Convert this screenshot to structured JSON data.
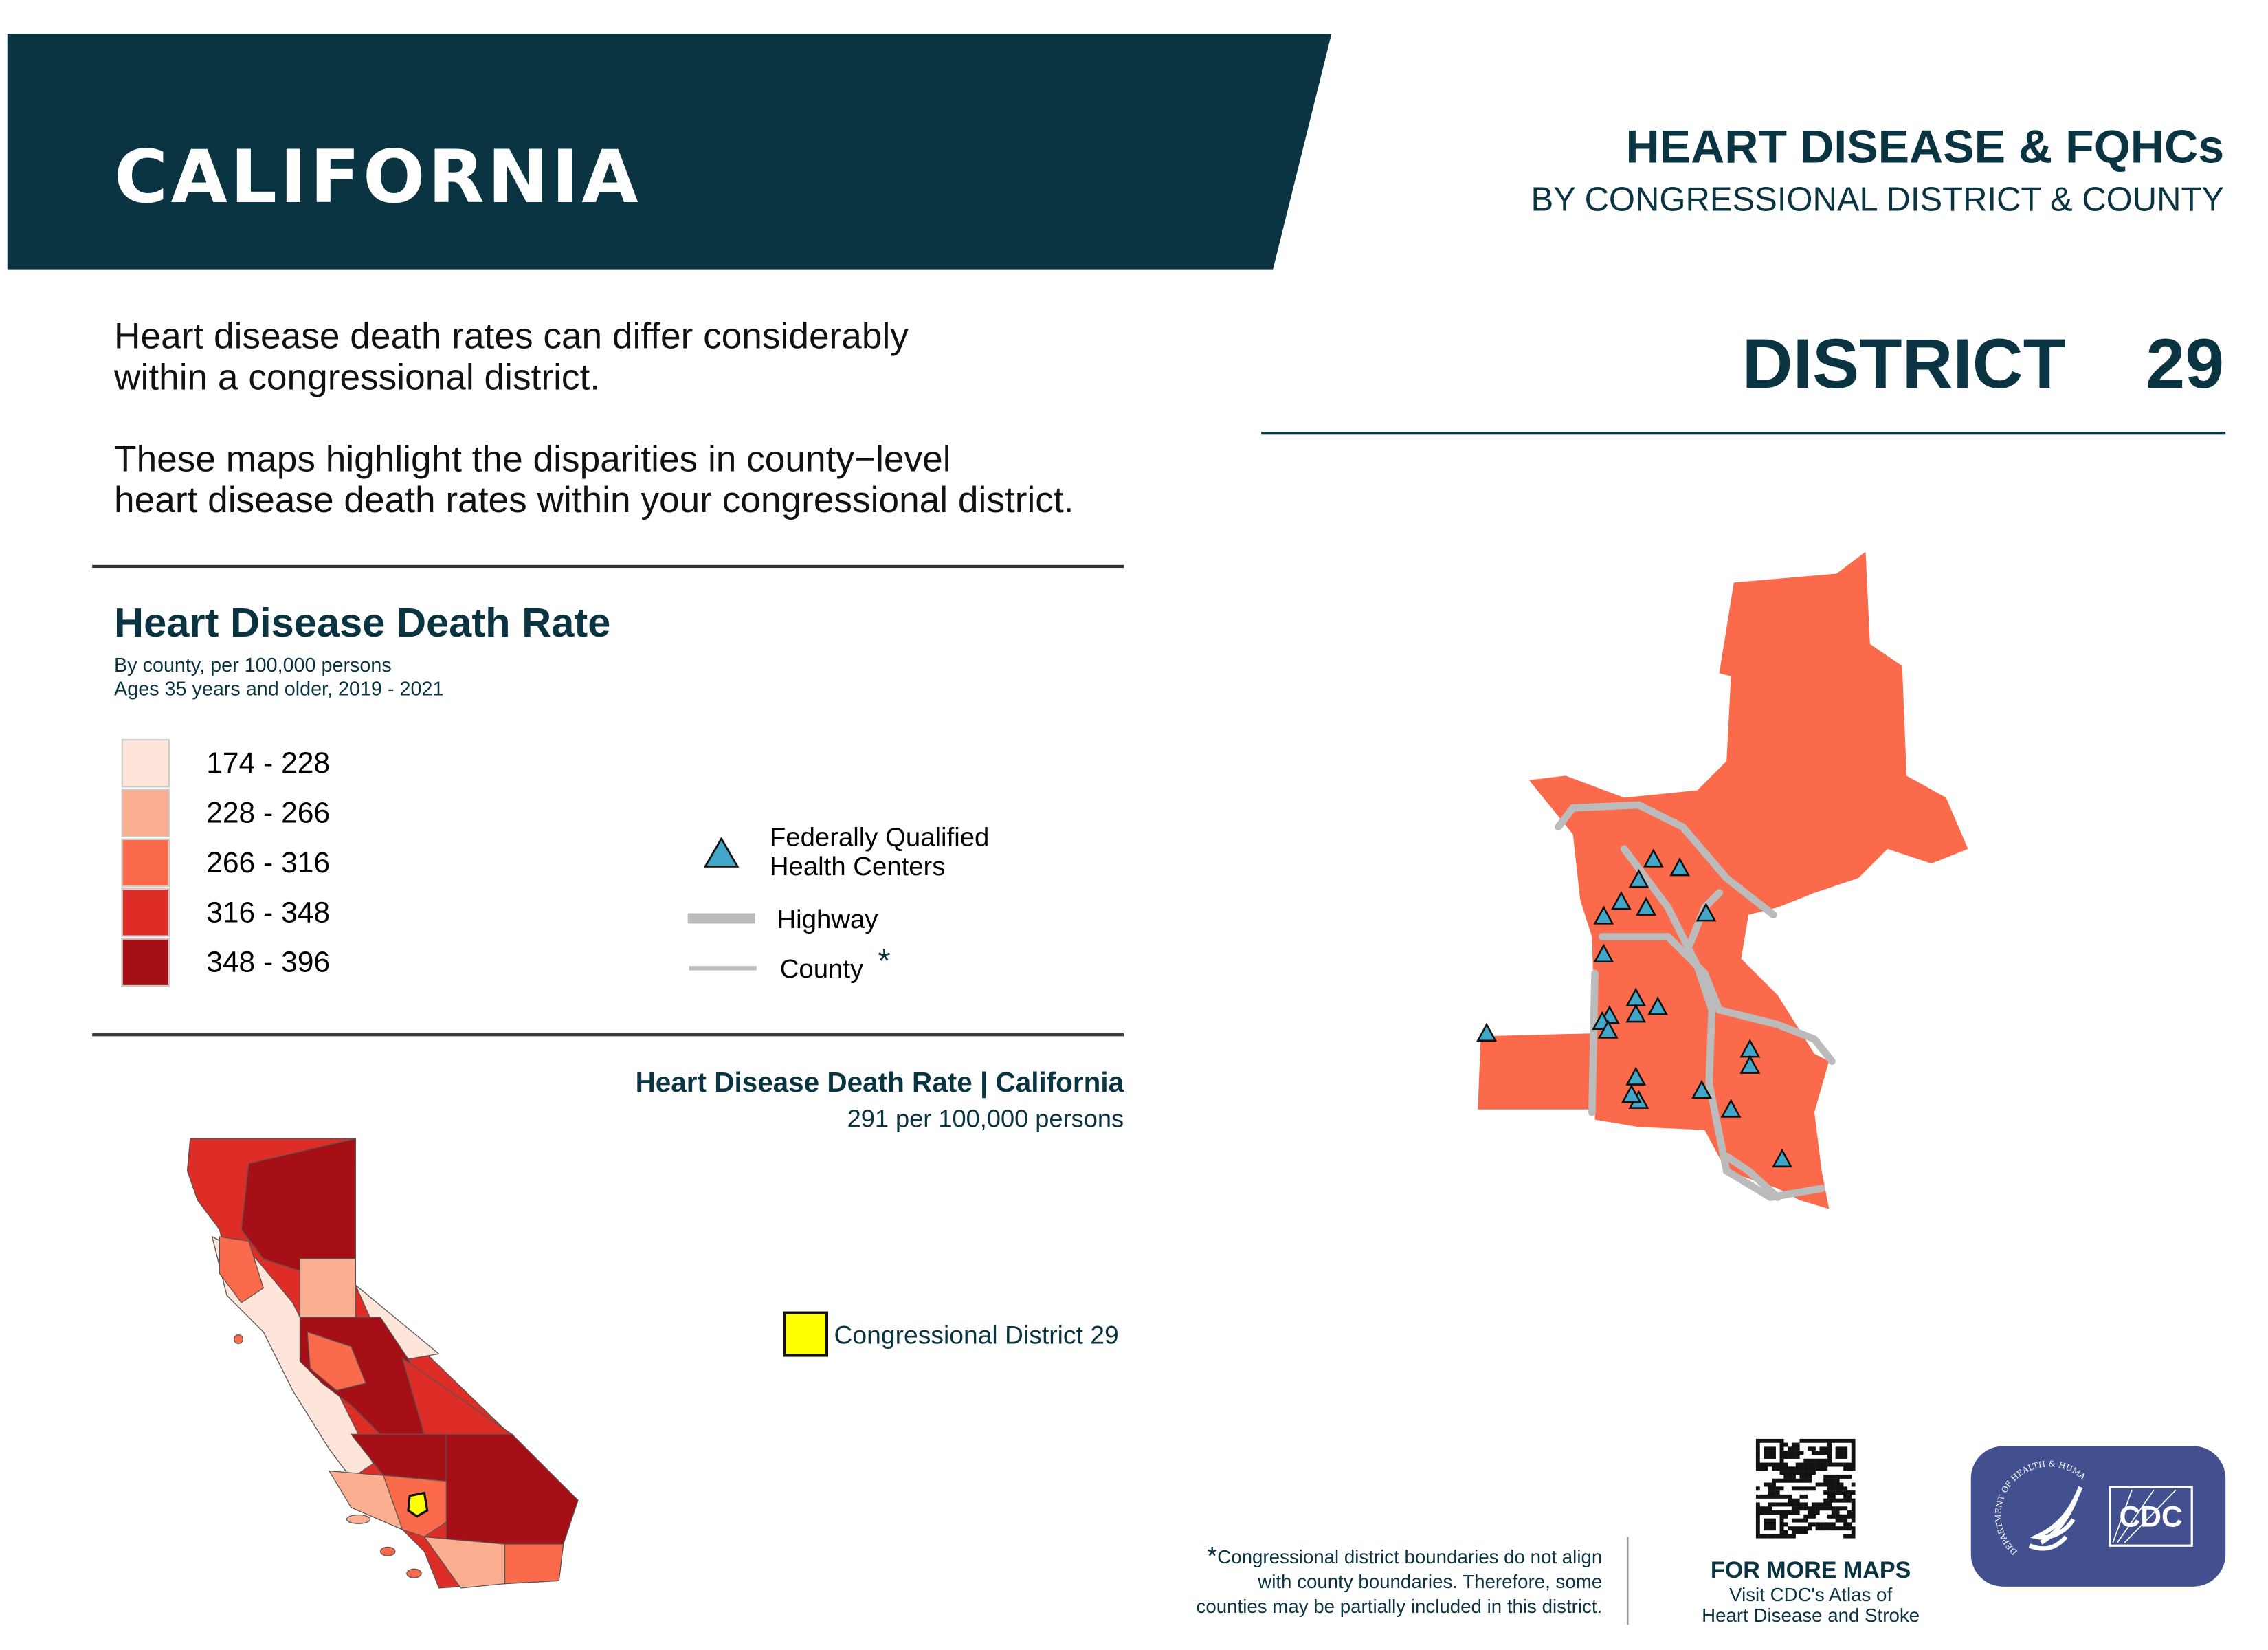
{
  "header": {
    "state": "CALIFORNIA",
    "title": "HEART DISEASE & FQHCs",
    "subtitle": "BY CONGRESSIONAL DISTRICT & COUNTY",
    "district": "DISTRICT  29"
  },
  "intro": {
    "p1_line1": "Heart disease death rates can differ considerably",
    "p1_line2": "within a congressional district.",
    "p2_line1": "These maps highlight the disparities in county−level",
    "p2_line2": "heart disease death rates within your congressional district."
  },
  "legend": {
    "title": "Heart Disease Death Rate",
    "sub1": "By county, per 100,000 persons",
    "sub2": "Ages 35 years and older, 2019 - 2021",
    "classes": [
      {
        "label": "174 - 228",
        "color": "#fee5d9"
      },
      {
        "label": "228 - 266",
        "color": "#fcae91"
      },
      {
        "label": "266 - 316",
        "color": "#fb6a4a"
      },
      {
        "label": "316 - 348",
        "color": "#de2d26"
      },
      {
        "label": "348 - 396",
        "color": "#a50f15"
      }
    ],
    "fqhc_line1": "Federally Qualified",
    "fqhc_line2": "Health Centers",
    "fqhc_color": "#41a6c8",
    "highway": "Highway",
    "county": "County",
    "asterisk": "*"
  },
  "state_map": {
    "title": "Heart Disease Death Rate | California",
    "rate": "291 per 100,000 persons",
    "district_label": "Congressional District 29",
    "district_color": "#ffff00"
  },
  "footer": {
    "asterisk": "*",
    "note_line1": "Congressional district boundaries do not align",
    "note_line2": "with county boundaries. Therefore, some",
    "note_line3": "counties may be partially included in this district.",
    "more_title": "FOR MORE MAPS",
    "more_line1": "Visit CDC's Atlas of",
    "more_line2": "Heart Disease and Stroke",
    "logo_text": "CDC",
    "hhs_text": "DEPARTMENT OF HEALTH & HUMAN SERVICES·USA"
  },
  "colors": {
    "brand": "#0b3442",
    "logo_bg": "#43508f",
    "highway": "#bbbbbb"
  }
}
